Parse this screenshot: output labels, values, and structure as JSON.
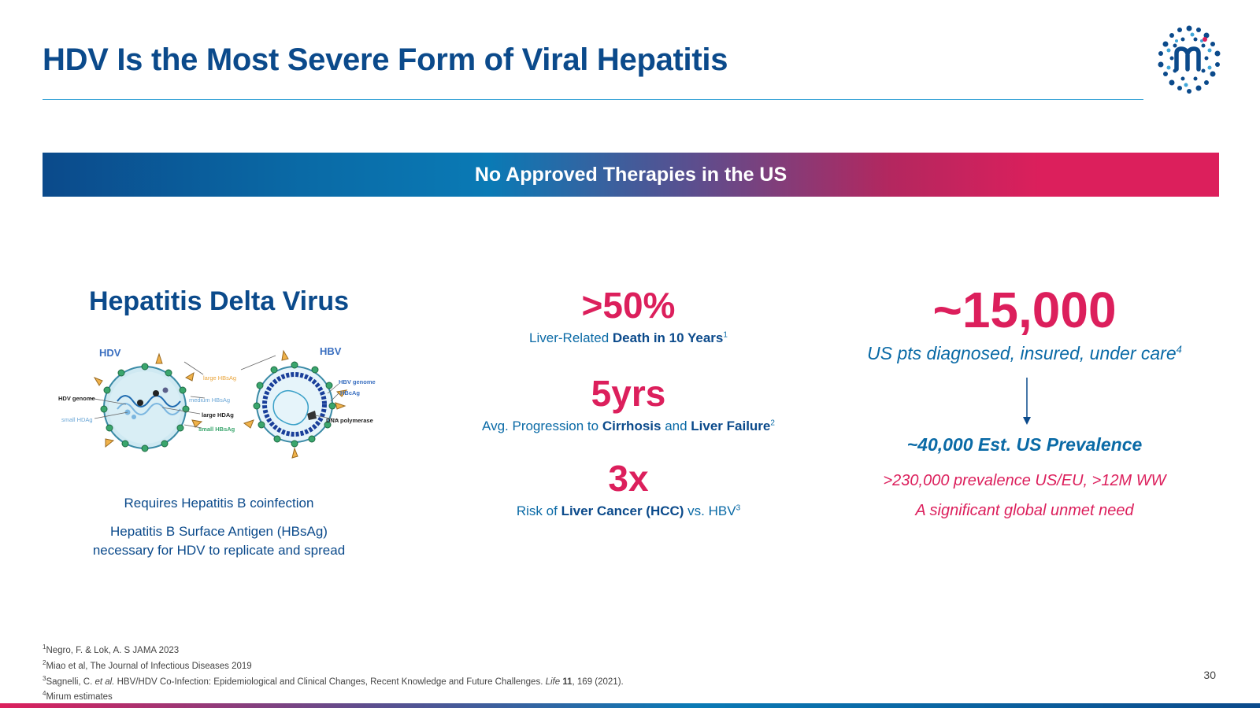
{
  "slide": {
    "title": "HDV Is the Most Severe Form of Viral Hepatitis",
    "banner": "No Approved Therapies in the US",
    "page_number": "30"
  },
  "left": {
    "heading": "Hepatitis Delta Virus",
    "diagram_labels": {
      "hdv": "HDV",
      "hbv": "HBV",
      "hdv_genome": "HDV genome",
      "small_hdag": "small HDAg",
      "large_hbsag": "large HBsAg",
      "medium_hbsag": "medium HBsAg",
      "large_hdag": "large HDAg",
      "small_hbsag": "small HBsAg",
      "hbv_genome": "HBV genome",
      "hbcag": "HBcAg",
      "dna_polymerase": "DNA polymerase"
    },
    "requires": "Requires Hepatitis B coinfection",
    "hbsag_line1": "Hepatitis B Surface Antigen (HBsAg)",
    "hbsag_line2": "necessary for HDV to replicate and spread"
  },
  "stats": [
    {
      "value": ">50%",
      "pre": "Liver-Related ",
      "bold1": "Death in 10 Years",
      "mid": "",
      "bold2": "",
      "post": "",
      "sup": "1"
    },
    {
      "value": "5yrs",
      "pre": "Avg. Progression to ",
      "bold1": "Cirrhosis",
      "mid": " and ",
      "bold2": "Liver Failure",
      "post": "",
      "sup": "2"
    },
    {
      "value": "3x",
      "pre": "Risk of ",
      "bold1": "Liver Cancer (HCC)",
      "mid": " vs. HBV",
      "bold2": "",
      "post": "",
      "sup": "3"
    }
  ],
  "right": {
    "big_number": "~15,000",
    "pts_text": "US pts diagnosed, insured, under care",
    "pts_sup": "4",
    "prevalence": "~40,000 Est. US Prevalence",
    "global_prevalence": ">230,000 prevalence US/EU, >12M WW",
    "unmet_need": "A significant global unmet need"
  },
  "footnotes": [
    {
      "sup": "1",
      "text": "Negro, F. & Lok, A. S JAMA 2023"
    },
    {
      "sup": "2",
      "text": "Miao et al, The Journal of Infectious Diseases 2019"
    },
    {
      "sup": "3",
      "pre": "Sagnelli, C. ",
      "italic": "et al.",
      "mid": " HBV/HDV Co-Infection: Epidemiological and Clinical Changes, Recent Knowledge and Future Challenges. ",
      "italic2": "Life",
      "bold": " 11",
      "post": ", 169 (2021)."
    },
    {
      "sup": "4",
      "text": "Mirum estimates"
    }
  ],
  "colors": {
    "navy": "#0b4a8b",
    "blue": "#0a6aa6",
    "magenta": "#dc1f5c"
  }
}
